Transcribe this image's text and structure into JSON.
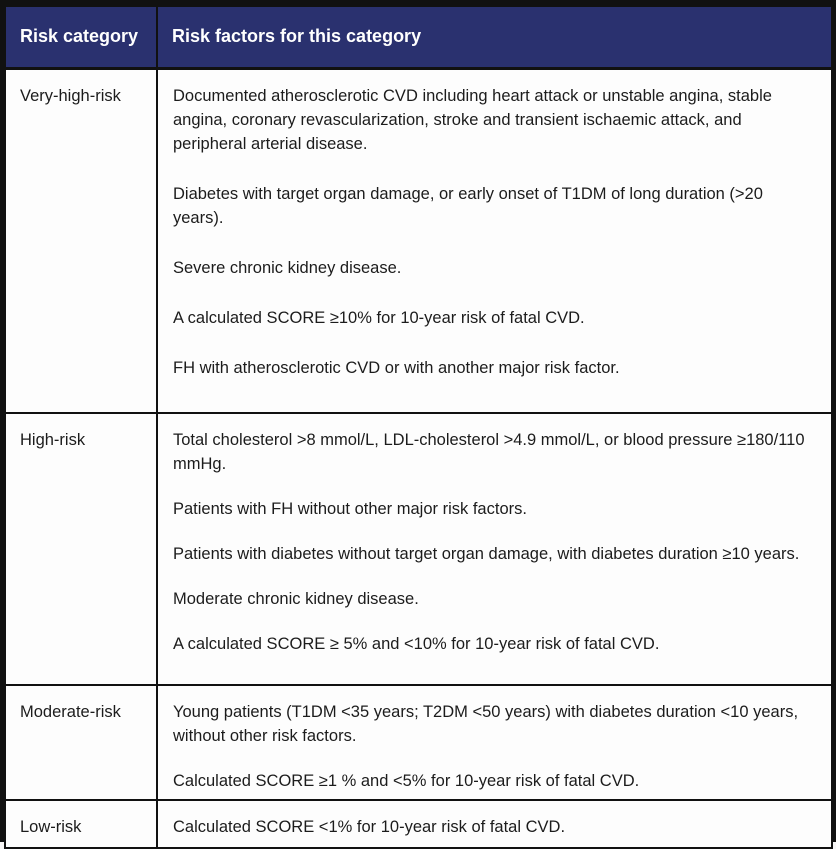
{
  "colors": {
    "header_bg": "#2a316f",
    "header_text": "#ffffff",
    "border": "#111111",
    "body_text": "#1c1c1c"
  },
  "table": {
    "header": {
      "col1": "Risk category",
      "col2": "Risk factors for this category"
    },
    "rows": [
      {
        "category": "Very-high-risk",
        "factors": [
          "Documented atherosclerotic CVD including heart attack or unstable angina, stable angina, coronary revascularization, stroke and transient ischaemic attack, and peripheral arterial disease.",
          "Diabetes with target organ damage, or early onset of T1DM of long duration (>20 years).",
          "Severe chronic kidney disease.",
          "A calculated SCORE ≥10% for 10-year risk of fatal CVD.",
          "FH with atherosclerotic CVD or with another major risk factor."
        ]
      },
      {
        "category": "High-risk",
        "factors": [
          "Total cholesterol >8 mmol/L, LDL-cholesterol >4.9 mmol/L, or blood pressure ≥180/110 mmHg.",
          "Patients with FH without other major risk factors.",
          "Patients with diabetes without target organ damage, with diabetes duration ≥10 years.",
          "Moderate chronic kidney disease.",
          "A calculated SCORE ≥ 5% and <10% for 10-year risk of fatal CVD."
        ]
      },
      {
        "category": "Moderate-risk",
        "factors": [
          "Young patients (T1DM <35 years; T2DM <50 years) with diabetes duration <10 years, without other risk factors.",
          "Calculated SCORE ≥1 % and <5% for 10-year risk of fatal CVD."
        ]
      },
      {
        "category": "Low-risk",
        "factors": [
          "Calculated SCORE <1% for 10-year risk of fatal CVD."
        ]
      }
    ]
  }
}
